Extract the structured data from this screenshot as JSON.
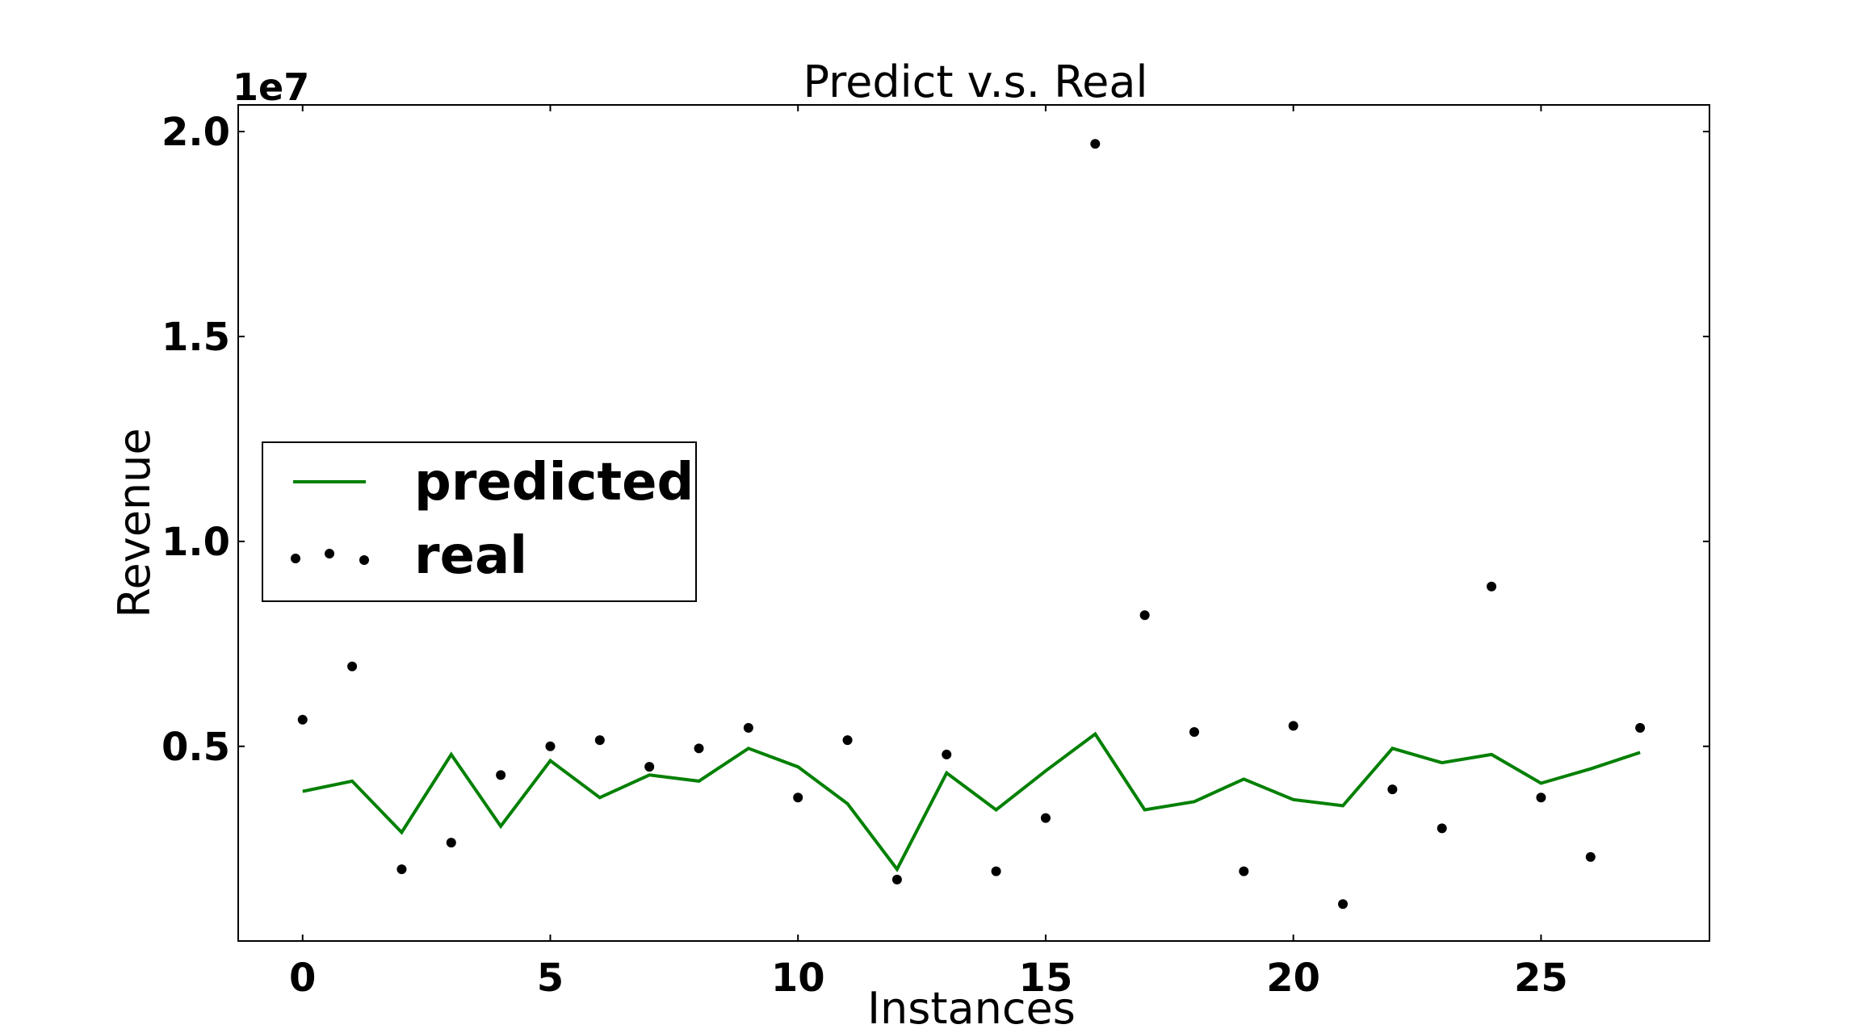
{
  "chart_data": {
    "type": "line",
    "title": "Predict v.s. Real",
    "xlabel": "Instances",
    "ylabel": "Revenue",
    "y_offset_label": "1e7",
    "xlim": [
      -1.3,
      28.4
    ],
    "ylim": [
      250000,
      20650000
    ],
    "xticks": [
      0,
      5,
      10,
      15,
      20,
      25
    ],
    "xtick_labels": [
      "0",
      "5",
      "10",
      "15",
      "20",
      "25"
    ],
    "yticks": [
      5000000,
      10000000,
      15000000,
      20000000
    ],
    "ytick_labels": [
      "0.5",
      "1.0",
      "1.5",
      "2.0"
    ],
    "x": [
      0,
      1,
      2,
      3,
      4,
      5,
      6,
      7,
      8,
      9,
      10,
      11,
      12,
      13,
      14,
      15,
      16,
      17,
      18,
      19,
      20,
      21,
      22,
      23,
      24,
      25,
      26,
      27
    ],
    "series": [
      {
        "name": "predicted",
        "style": "line",
        "color": "#008000",
        "values": [
          3900000,
          4150000,
          2900000,
          4800000,
          3050000,
          4650000,
          3750000,
          4300000,
          4150000,
          4950000,
          4500000,
          3600000,
          2000000,
          4350000,
          3450000,
          4400000,
          5300000,
          3450000,
          3650000,
          4200000,
          3700000,
          3550000,
          4950000,
          4600000,
          4800000,
          4100000,
          4450000,
          4850000
        ]
      },
      {
        "name": "real",
        "style": "dots",
        "color": "#000000",
        "values": [
          5650000,
          6950000,
          2000000,
          2650000,
          4300000,
          5000000,
          5150000,
          4500000,
          4950000,
          5450000,
          3750000,
          5150000,
          1750000,
          4800000,
          1950000,
          3250000,
          19700000,
          8200000,
          5350000,
          1950000,
          5500000,
          1150000,
          3950000,
          3000000,
          8900000,
          3750000,
          2300000,
          5450000
        ]
      }
    ],
    "grid": false,
    "legend_position": "center-left"
  }
}
